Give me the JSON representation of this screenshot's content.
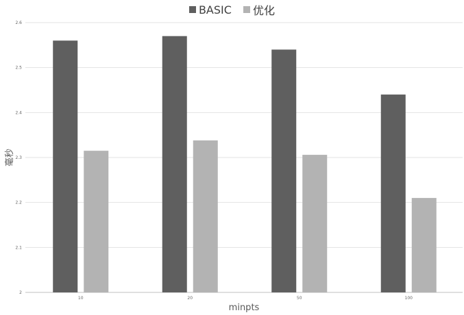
{
  "chart_data": {
    "type": "bar",
    "title": "",
    "xlabel": "minpts",
    "ylabel": "毫秒",
    "categories": [
      "10",
      "20",
      "50",
      "100"
    ],
    "series": [
      {
        "name": "BASIC",
        "color": "#5f5f5f",
        "values": [
          2.56,
          2.57,
          2.54,
          2.44
        ]
      },
      {
        "name": "优化",
        "color": "#b3b3b3",
        "values": [
          2.315,
          2.338,
          2.306,
          2.21
        ]
      }
    ],
    "ylim": [
      2,
      2.6
    ],
    "yticks": [
      "2",
      "2.1",
      "2.2",
      "2.3",
      "2.4",
      "2.5",
      "2.6"
    ],
    "grid": true,
    "legend_position": "top-center"
  }
}
